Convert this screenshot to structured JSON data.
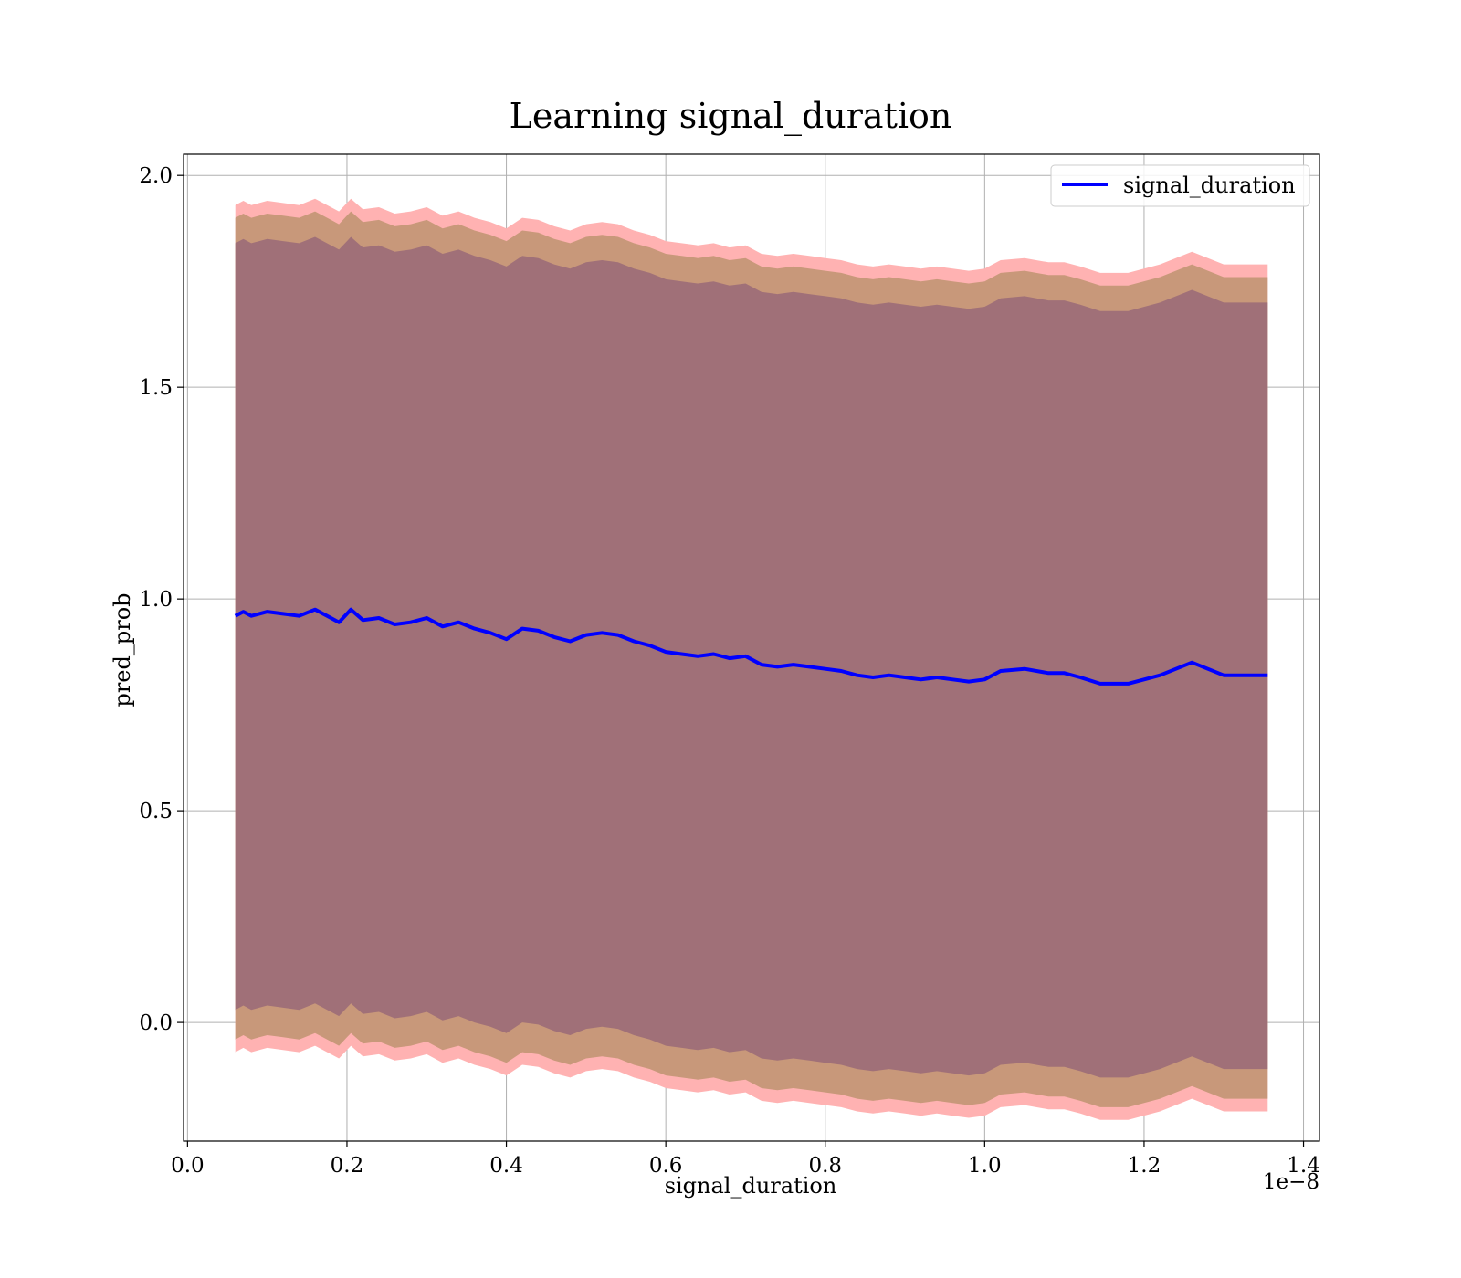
{
  "chart_data": {
    "type": "area",
    "title": "Learning signal_duration",
    "xlabel": "signal_duration",
    "ylabel": "pred_prob",
    "x_offset_label": "1e−8",
    "xlim": [
      -0.005,
      1.42
    ],
    "ylim": [
      -0.28,
      2.05
    ],
    "x_ticks": [
      0.0,
      0.2,
      0.4,
      0.6,
      0.8,
      1.0,
      1.2,
      1.4
    ],
    "x_tick_labels": [
      "0.0",
      "0.2",
      "0.4",
      "0.6",
      "0.8",
      "1.0",
      "1.2",
      "1.4"
    ],
    "y_ticks": [
      0.0,
      0.5,
      1.0,
      1.5,
      2.0
    ],
    "y_tick_labels": [
      "0.0",
      "0.5",
      "1.0",
      "1.5",
      "2.0"
    ],
    "grid": true,
    "legend": {
      "position": "top-right",
      "entries": [
        "signal_duration"
      ]
    },
    "colors": {
      "line": "#0000ff",
      "outer_band": "#ffb2b2",
      "middle_band": "#c8987a",
      "inner_band": "#a07078",
      "grid": "#b0b0b0"
    },
    "x": [
      0.06,
      0.07,
      0.08,
      0.09,
      0.1,
      0.12,
      0.14,
      0.16,
      0.18,
      0.19,
      0.205,
      0.22,
      0.24,
      0.26,
      0.28,
      0.3,
      0.32,
      0.34,
      0.36,
      0.38,
      0.4,
      0.42,
      0.44,
      0.46,
      0.48,
      0.5,
      0.52,
      0.54,
      0.56,
      0.58,
      0.6,
      0.62,
      0.64,
      0.66,
      0.68,
      0.7,
      0.72,
      0.74,
      0.76,
      0.78,
      0.8,
      0.82,
      0.84,
      0.86,
      0.88,
      0.9,
      0.92,
      0.94,
      0.96,
      0.98,
      1.0,
      1.02,
      1.05,
      1.08,
      1.1,
      1.12,
      1.145,
      1.18,
      1.22,
      1.26,
      1.3,
      1.33,
      1.355
    ],
    "series": [
      {
        "name": "signal_duration",
        "values": [
          0.96,
          0.97,
          0.96,
          0.965,
          0.97,
          0.965,
          0.96,
          0.975,
          0.955,
          0.945,
          0.975,
          0.95,
          0.955,
          0.94,
          0.945,
          0.955,
          0.935,
          0.945,
          0.93,
          0.92,
          0.905,
          0.93,
          0.925,
          0.91,
          0.9,
          0.915,
          0.92,
          0.915,
          0.9,
          0.89,
          0.875,
          0.87,
          0.865,
          0.87,
          0.86,
          0.865,
          0.845,
          0.84,
          0.845,
          0.84,
          0.835,
          0.83,
          0.82,
          0.815,
          0.82,
          0.815,
          0.81,
          0.815,
          0.81,
          0.805,
          0.81,
          0.83,
          0.835,
          0.825,
          0.825,
          0.815,
          0.8,
          0.8,
          0.82,
          0.85,
          0.82,
          0.82,
          0.82
        ]
      }
    ],
    "bands": [
      {
        "lower_offset": 1.03,
        "upper_offset": 0.97
      },
      {
        "lower_offset": 1.0,
        "upper_offset": 0.94
      },
      {
        "lower_offset": 0.93,
        "upper_offset": 0.88
      }
    ]
  }
}
